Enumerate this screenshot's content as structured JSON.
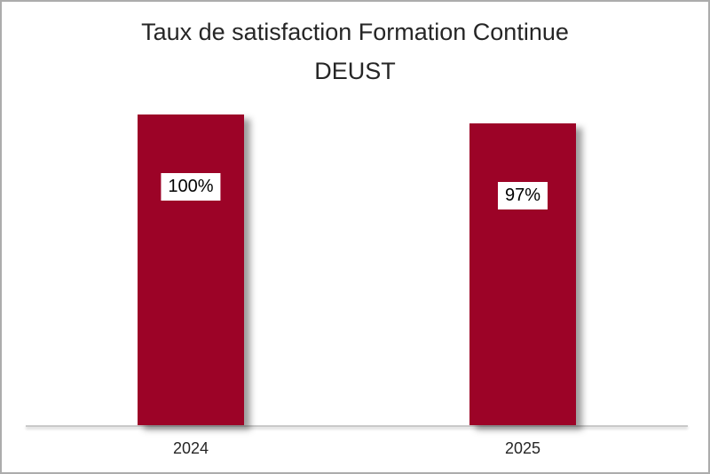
{
  "title": {
    "line1": "Taux de satisfaction Formation Continue",
    "line2": "DEUST"
  },
  "chart_data": {
    "type": "bar",
    "title": "Taux de satisfaction Formation Continue DEUST",
    "categories": [
      "2024",
      "2025"
    ],
    "values": [
      100,
      97
    ],
    "data_labels": [
      "100%",
      "97%"
    ],
    "ylim": [
      0,
      100
    ],
    "xlabel": "",
    "ylabel": "",
    "grid": false,
    "legend": "none",
    "axis_ticks_visible": false,
    "colors": {
      "bar": "#9C0327",
      "title_text": "#262626",
      "tick_text": "#262626",
      "data_label_text": "#000000",
      "data_label_bg": "#FFFFFF",
      "axis_line": "#C9C9C9",
      "frame_border": "#ACACAC",
      "background": "#FFFFFF"
    }
  }
}
